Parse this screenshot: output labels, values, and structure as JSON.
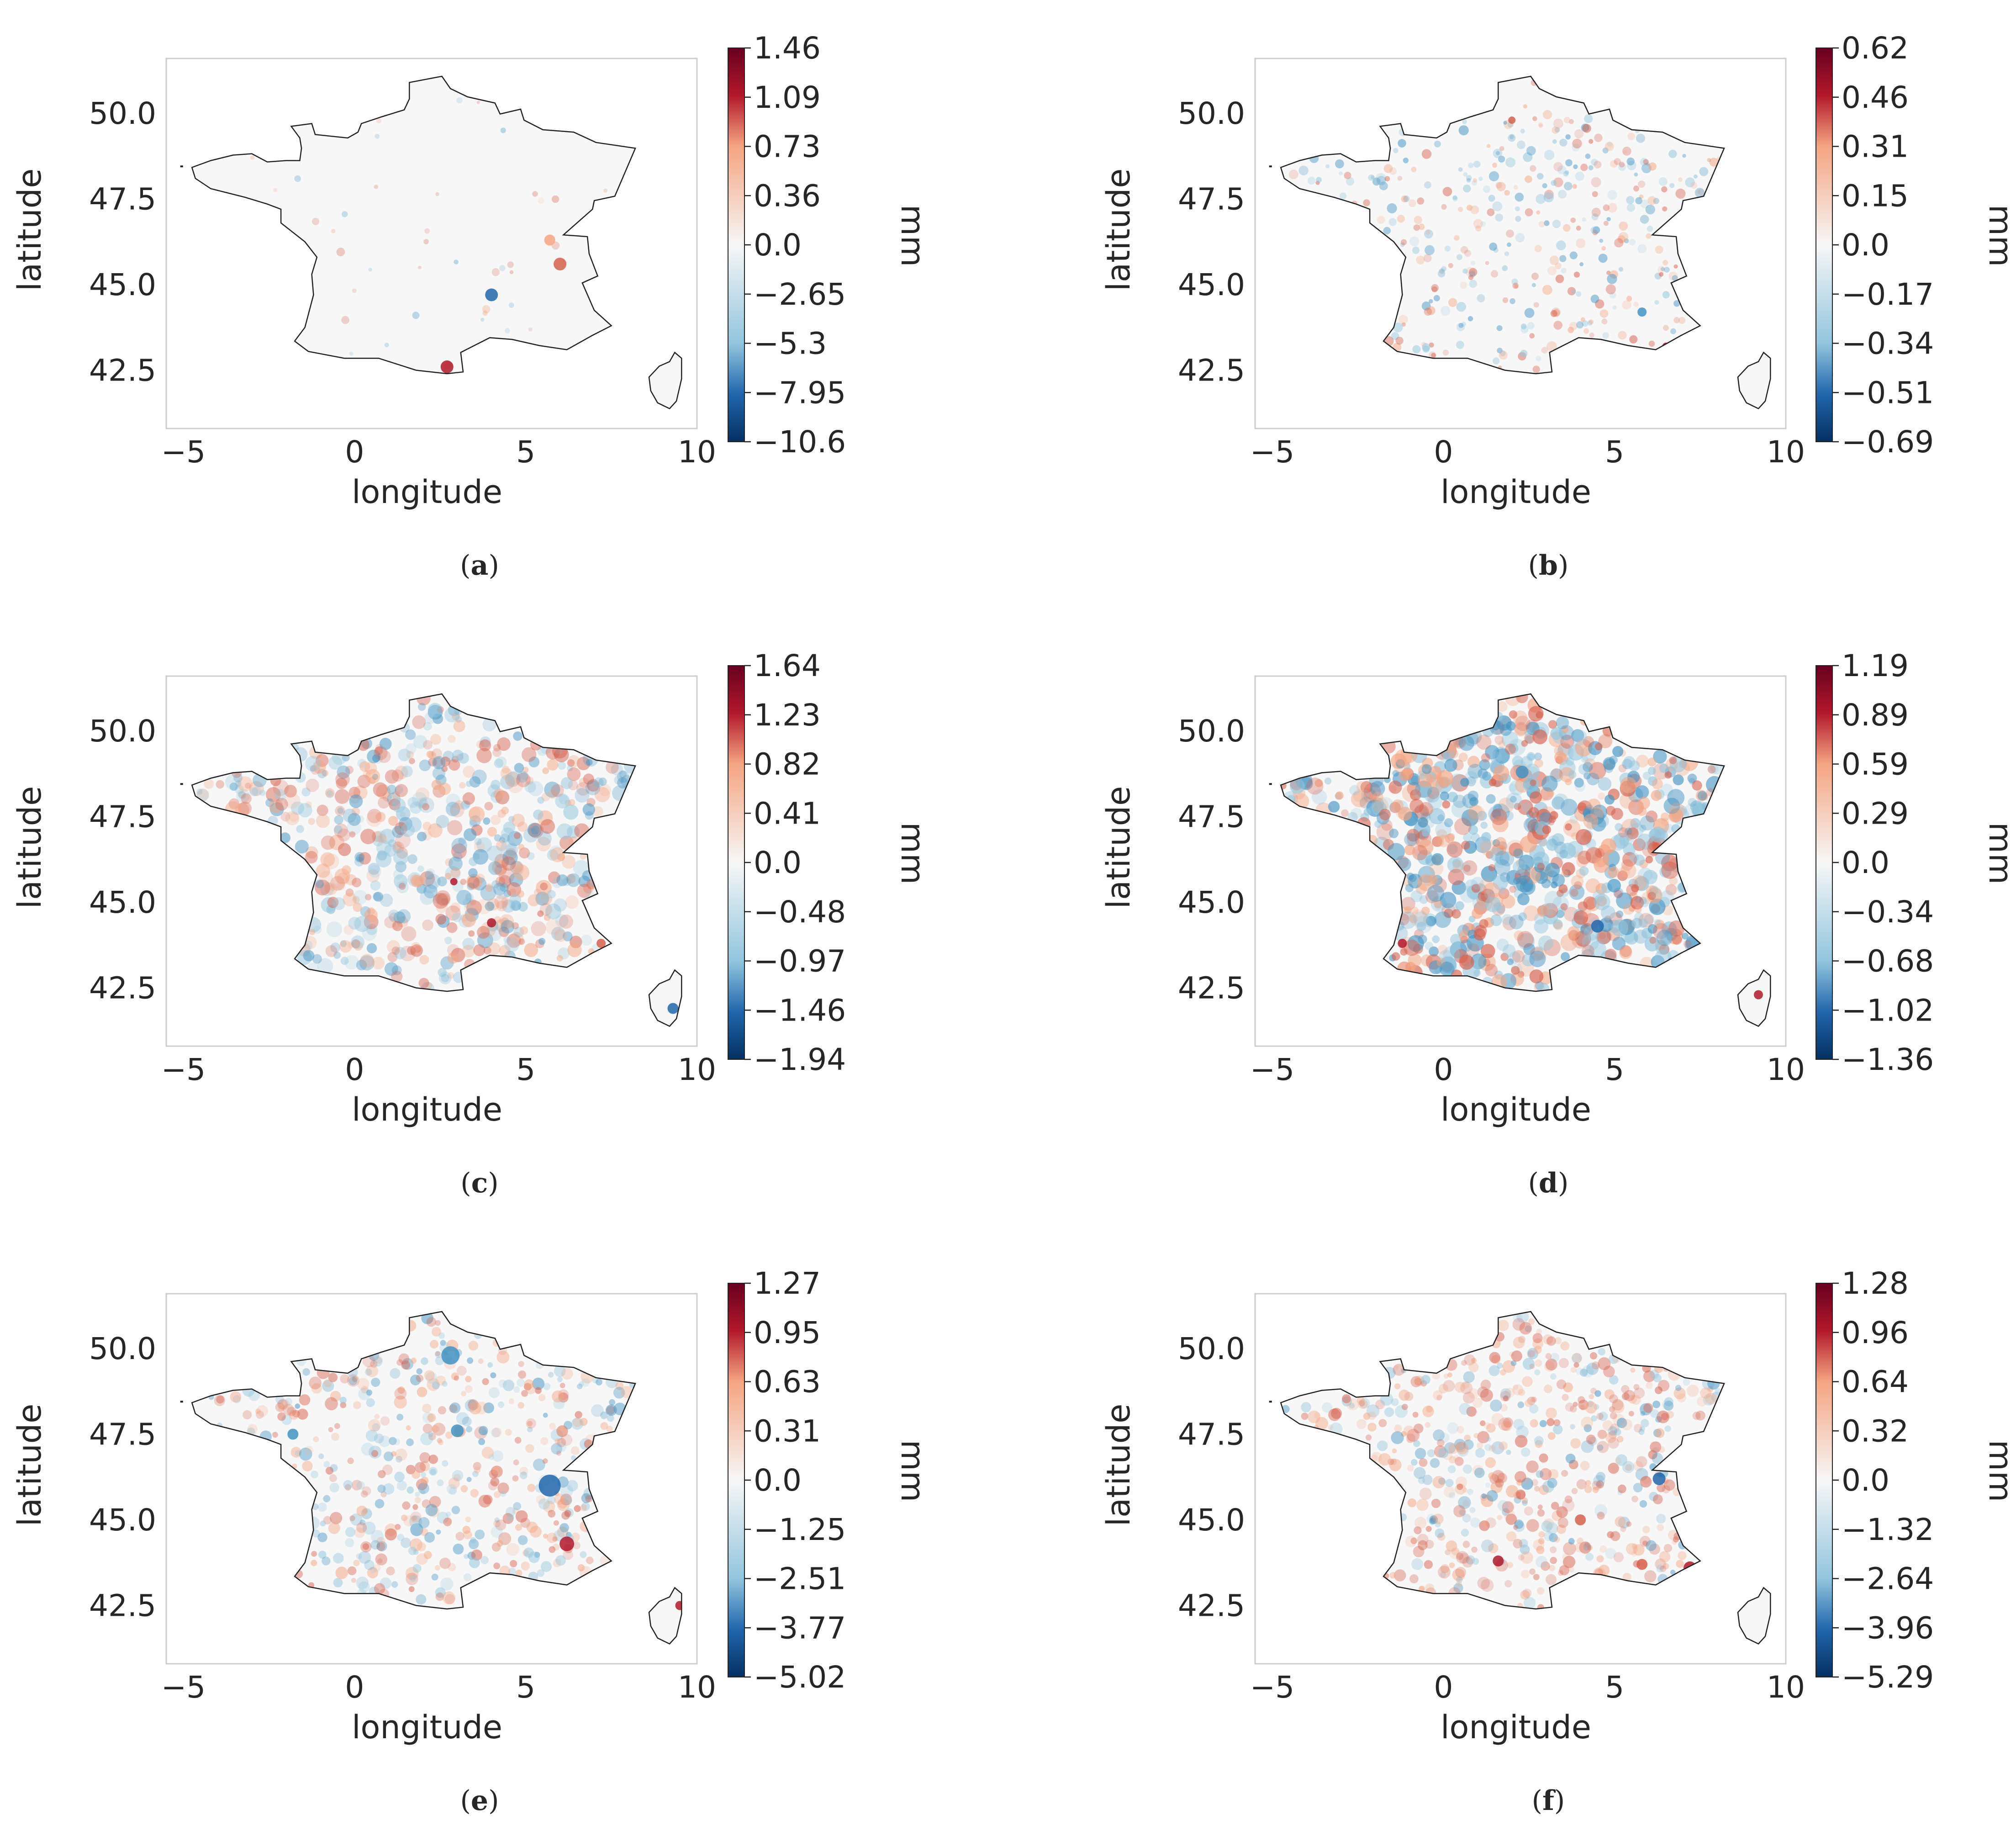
{
  "figure": {
    "panels": [
      {
        "caption": "a",
        "colorbar": {
          "ticks": [
            "1.46",
            "1.09",
            "0.73",
            "0.36",
            "0.0",
            "−2.65",
            "−5.3",
            "−7.95",
            "−10.6"
          ],
          "max": 1.46,
          "min": -10.6
        }
      },
      {
        "caption": "b",
        "colorbar": {
          "ticks": [
            "0.62",
            "0.46",
            "0.31",
            "0.15",
            "0.0",
            "−0.17",
            "−0.34",
            "−0.51",
            "−0.69"
          ],
          "max": 0.62,
          "min": -0.69
        }
      },
      {
        "caption": "c",
        "colorbar": {
          "ticks": [
            "1.64",
            "1.23",
            "0.82",
            "0.41",
            "0.0",
            "−0.48",
            "−0.97",
            "−1.46",
            "−1.94"
          ],
          "max": 1.64,
          "min": -1.94
        }
      },
      {
        "caption": "d",
        "colorbar": {
          "ticks": [
            "1.19",
            "0.89",
            "0.59",
            "0.29",
            "0.0",
            "−0.34",
            "−0.68",
            "−1.02",
            "−1.36"
          ],
          "max": 1.19,
          "min": -1.36
        }
      },
      {
        "caption": "e",
        "colorbar": {
          "ticks": [
            "1.27",
            "0.95",
            "0.63",
            "0.31",
            "0.0",
            "−1.25",
            "−2.51",
            "−3.77",
            "−5.02"
          ],
          "max": 1.27,
          "min": -5.02
        }
      },
      {
        "caption": "f",
        "colorbar": {
          "ticks": [
            "1.28",
            "0.96",
            "0.64",
            "0.32",
            "0.0",
            "−1.32",
            "−2.64",
            "−3.96",
            "−5.29"
          ],
          "max": 1.28,
          "min": -5.29
        }
      }
    ]
  },
  "axes": {
    "xlabel": "longitude",
    "ylabel": "latitude",
    "xticks": [
      "−5",
      "0",
      "5",
      "10"
    ],
    "xtick_values": [
      -5,
      0,
      5,
      10
    ],
    "yticks": [
      "50.0",
      "47.5",
      "45.0",
      "42.5"
    ],
    "ytick_values": [
      50.0,
      47.5,
      45.0,
      42.5
    ],
    "xlim": [
      -5.5,
      10
    ],
    "ylim": [
      40.8,
      51.6
    ],
    "colorbar_label": "mm"
  },
  "colors": {
    "positive": "#b2182b",
    "negative": "#2166ac",
    "land": "#f7f7f7",
    "outline": "#222222"
  }
}
